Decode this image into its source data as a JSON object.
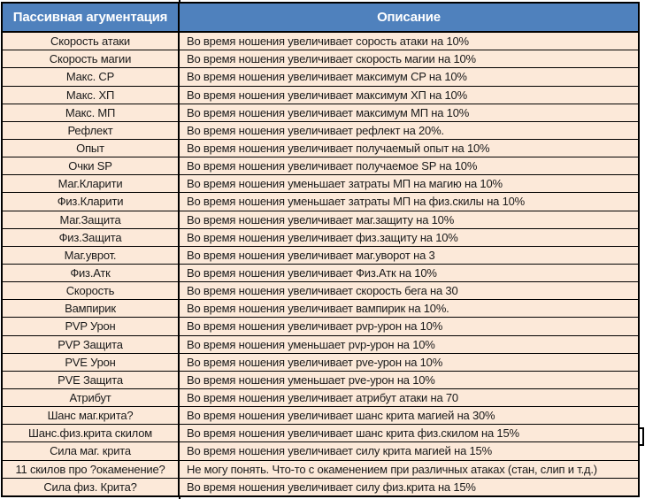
{
  "colors": {
    "header_bg": "#4f81bd",
    "header_text": "#ffffff",
    "row_bg": "#fce9d9",
    "border": "#000000",
    "body_text": "#1a1a1a",
    "page_bg": "#ffffff"
  },
  "table": {
    "columns": [
      {
        "label": "Пассивная агументация"
      },
      {
        "label": "Описание"
      }
    ],
    "rows": [
      {
        "name": "Скорость атаки",
        "description": "Во время ношения увеличивает сорость атаки на 10%"
      },
      {
        "name": "Скорость магии",
        "description": "Во время ношения увеличивает скорость магии на 10%"
      },
      {
        "name": "Макс. CP",
        "description": "Во время ношения увеличивает максимум CP на 10%"
      },
      {
        "name": "Макс. ХП",
        "description": "Во время ношения увеличивает максимум ХП на 10%"
      },
      {
        "name": "Макс. МП",
        "description": "Во время ношения увеличивает максимум МП на 10%"
      },
      {
        "name": "Рефлект",
        "description": "Во время ношения увеличивает рефлект на 20%."
      },
      {
        "name": "Опыт",
        "description": "Во время ношения увеличивает получаемый опыт на 10%"
      },
      {
        "name": "Очки SP",
        "description": "Во время ношения увеличивает получаемое SP на 10%"
      },
      {
        "name": "Маг.Кларити",
        "description": "Во время ношения уменьшает затраты МП на магию на 10%"
      },
      {
        "name": "Физ.Кларити",
        "description": "Во время ношения уменьшает затраты МП на физ.скилы на 10%"
      },
      {
        "name": "Маг.Защита",
        "description": "Во время ношения увеличивает маг.защиту на 10%"
      },
      {
        "name": "Физ.Защита",
        "description": "Во время ношения увеличивает физ.защиту на 10%"
      },
      {
        "name": "Маг.уврот.",
        "description": "Во время ношения увеличивает маг.уворот на 3"
      },
      {
        "name": "Физ.Атк",
        "description": "Во время ношения увеличивает Физ.Атк на 10%"
      },
      {
        "name": "Скорость",
        "description": "Во время ношения увеличивает скорость бега на 30"
      },
      {
        "name": "Вампирик",
        "description": "Во время ношения увеличивает вампирик на 10%."
      },
      {
        "name": "PVP Урон",
        "description": "Во время ношения увеличивает pvp-урон на 10%"
      },
      {
        "name": "PVP Защита",
        "description": "Во время ношения уменьшает pvp-урон на 10%"
      },
      {
        "name": "PVE Урон",
        "description": "Во время ношения увеличивает pve-урон на 10%"
      },
      {
        "name": "PVE Защита",
        "description": "Во время ношения уменьшает pve-урон на 10%"
      },
      {
        "name": "Атрибут",
        "description": "Во время ношения увеличивает атрибут атаки на 70"
      },
      {
        "name": "Шанс маг.крита?",
        "description": "Во время ношения увеличивает шанс крита магией на 30%"
      },
      {
        "name": "Шанс.физ.крита скилом",
        "description": "Во время ношения увеличивает шанс крита физ.скилом на 15%"
      },
      {
        "name": "Сила маг. крита",
        "description": "Во время ношения увеличивает силу крита магией на 15%"
      },
      {
        "name": "11 скилов про ?окаменение?",
        "description": "Не могу понять. Что-то с окаменением при различных атаках (стан, слип и т.д.)"
      },
      {
        "name": "Сила физ. Крита?",
        "description": "Во время ношения увеличивает силу физ.крита на 15%"
      }
    ]
  }
}
